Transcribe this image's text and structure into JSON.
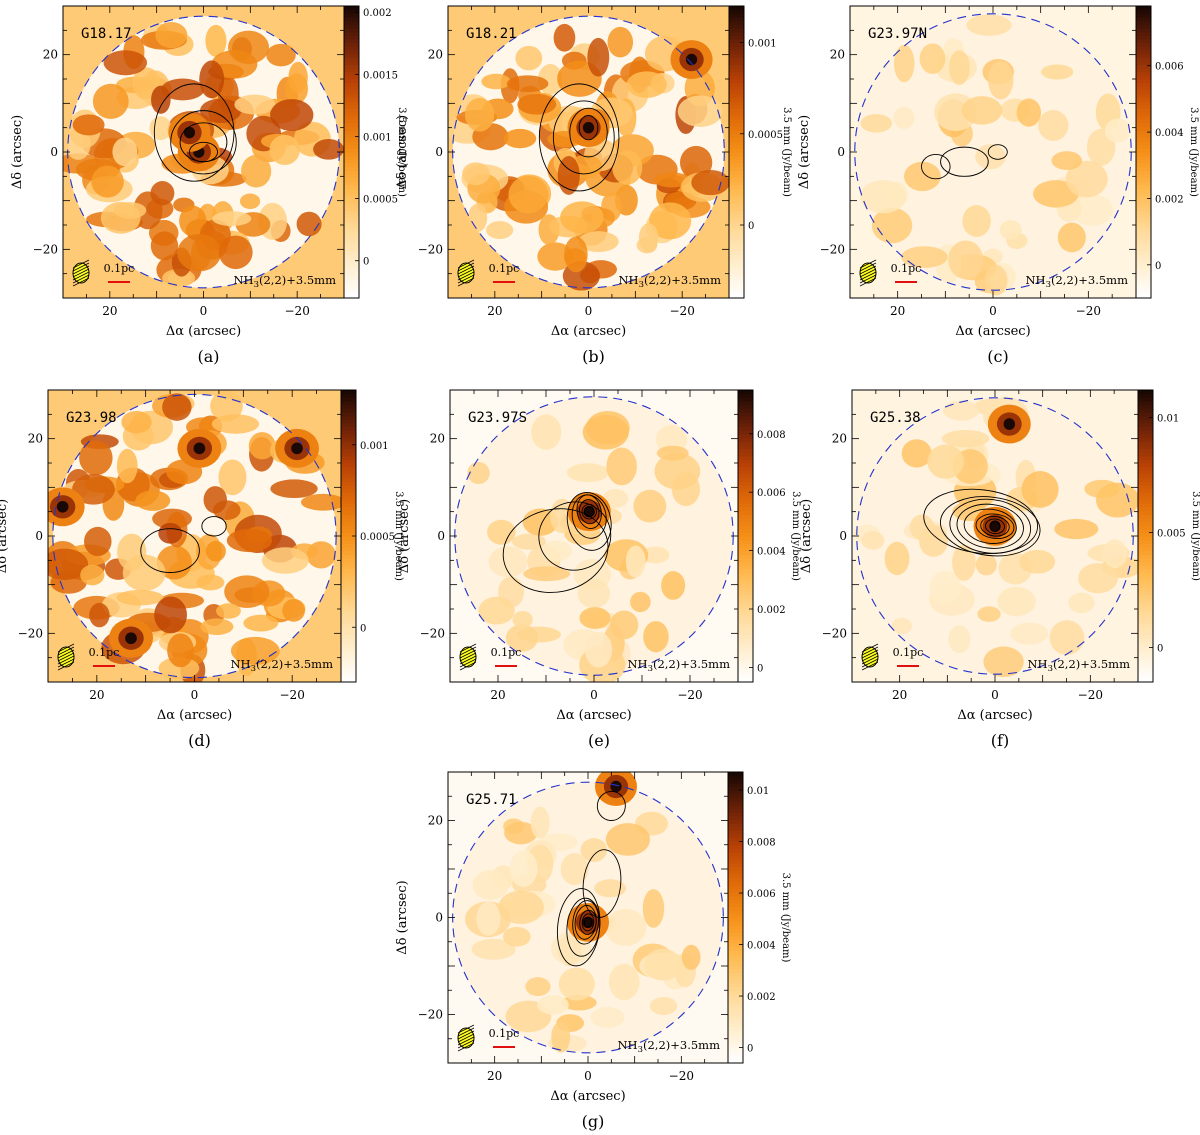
{
  "figure": {
    "background": "#ffffff"
  },
  "common": {
    "xlabel": "Δα (arcsec)",
    "ylabel": "Δδ (arcsec)",
    "colorbar_label": "3.5 mm (Jy/beam)",
    "overlay_label": "NH",
    "overlay_sub": "3",
    "overlay_rest": "(2,2)+3.5mm",
    "scalebar_label": "0.1pc",
    "colors": {
      "primary_beam": "#2233cc",
      "scalebar": "#e01010",
      "beam": "#ffff22",
      "contour": "#000000"
    },
    "colormap": [
      "#ffffff",
      "#ffecc8",
      "#ffd690",
      "#ffb84c",
      "#f59018",
      "#e06a08",
      "#b84006",
      "#6e2208",
      "#1a0804"
    ]
  },
  "chart_data": [
    {
      "type": "heatmap",
      "panel": "(a)",
      "title": "G18.17",
      "xlim": [
        30,
        -30
      ],
      "ylim": [
        -30,
        30
      ],
      "x_ticks": [
        20,
        0,
        -20
      ],
      "y_ticks": [
        -20,
        0,
        20
      ],
      "x_tick_labels": [
        "20",
        "0",
        "−20"
      ],
      "y_tick_labels": [
        "−20",
        "0",
        "20"
      ],
      "colorbar_range": [
        -0.0003,
        0.00205
      ],
      "colorbar_ticks": [
        0,
        0.0005,
        0.001,
        0.0015,
        0.002
      ],
      "colorbar_tick_labels": [
        "0",
        "0.0005",
        "0.001",
        "0.0015",
        "0.002"
      ],
      "background": "noisy",
      "seed": 11,
      "peaks": [
        {
          "x": 1,
          "y": 0
        },
        {
          "x": 3,
          "y": 4
        }
      ]
    },
    {
      "type": "heatmap",
      "panel": "(b)",
      "title": "G18.21",
      "xlim": [
        30,
        -30
      ],
      "ylim": [
        -30,
        30
      ],
      "x_ticks": [
        20,
        0,
        -20
      ],
      "y_ticks": [
        -20,
        0,
        20
      ],
      "x_tick_labels": [
        "20",
        "0",
        "−20"
      ],
      "y_tick_labels": [
        "−20",
        "0",
        "20"
      ],
      "colorbar_range": [
        -0.0004,
        0.0012
      ],
      "colorbar_ticks": [
        0,
        0.0005,
        0.001
      ],
      "colorbar_tick_labels": [
        "0",
        "0.0005",
        "0.001"
      ],
      "background": "noisy",
      "seed": 23,
      "peaks": [
        {
          "x": 0,
          "y": 5
        },
        {
          "x": -22,
          "y": 19
        }
      ]
    },
    {
      "type": "heatmap",
      "panel": "(c)",
      "title": "G23.97N",
      "xlim": [
        30,
        -30
      ],
      "ylim": [
        -30,
        30
      ],
      "x_ticks": [
        20,
        0,
        -20
      ],
      "y_ticks": [
        -20,
        0,
        20
      ],
      "x_tick_labels": [
        "20",
        "0",
        "−20"
      ],
      "y_tick_labels": [
        "−20",
        "0",
        "20"
      ],
      "colorbar_range": [
        -0.001,
        0.0078
      ],
      "colorbar_ticks": [
        0,
        0.002,
        0.004,
        0.006
      ],
      "colorbar_tick_labels": [
        "0",
        "0.002",
        "0.004",
        "0.006"
      ],
      "background": "faint",
      "seed": 37,
      "peaks": []
    },
    {
      "type": "heatmap",
      "panel": "(d)",
      "title": "G23.98",
      "xlim": [
        30,
        -30
      ],
      "ylim": [
        -30,
        30
      ],
      "x_ticks": [
        20,
        0,
        -20
      ],
      "y_ticks": [
        -20,
        0,
        20
      ],
      "x_tick_labels": [
        "20",
        "0",
        "−20"
      ],
      "y_tick_labels": [
        "−20",
        "0",
        "20"
      ],
      "colorbar_range": [
        -0.0003,
        0.0013
      ],
      "colorbar_ticks": [
        0,
        0.0005,
        0.001
      ],
      "colorbar_tick_labels": [
        "0",
        "0.0005",
        "0.001"
      ],
      "background": "noisy",
      "seed": 41,
      "peaks": [
        {
          "x": -1,
          "y": 18
        },
        {
          "x": 13,
          "y": -21
        },
        {
          "x": 27,
          "y": 6
        },
        {
          "x": -21,
          "y": 18
        }
      ]
    },
    {
      "type": "heatmap",
      "panel": "(e)",
      "title": "G23.97S",
      "xlim": [
        30,
        -30
      ],
      "ylim": [
        -30,
        30
      ],
      "x_ticks": [
        20,
        0,
        -20
      ],
      "y_ticks": [
        -20,
        0,
        20
      ],
      "x_tick_labels": [
        "20",
        "0",
        "−20"
      ],
      "y_tick_labels": [
        "−20",
        "0",
        "20"
      ],
      "colorbar_range": [
        -0.0005,
        0.0095
      ],
      "colorbar_ticks": [
        0,
        0.002,
        0.004,
        0.006,
        0.008
      ],
      "colorbar_tick_labels": [
        "0",
        "0.002",
        "0.004",
        "0.006",
        "0.008"
      ],
      "background": "faint",
      "seed": 53,
      "peaks": [
        {
          "x": 1,
          "y": 5
        }
      ]
    },
    {
      "type": "heatmap",
      "panel": "(f)",
      "title": "G25.38",
      "xlim": [
        30,
        -30
      ],
      "ylim": [
        -30,
        30
      ],
      "x_ticks": [
        20,
        0,
        -20
      ],
      "y_ticks": [
        -20,
        0,
        20
      ],
      "x_tick_labels": [
        "20",
        "0",
        "−20"
      ],
      "y_tick_labels": [
        "−20",
        "0",
        "20"
      ],
      "colorbar_range": [
        -0.0015,
        0.0112
      ],
      "colorbar_ticks": [
        0,
        0.005,
        0.01
      ],
      "colorbar_tick_labels": [
        "0",
        "0.005",
        "0.01"
      ],
      "background": "faint",
      "seed": 67,
      "peaks": [
        {
          "x": 0,
          "y": 2
        },
        {
          "x": -3,
          "y": 23
        }
      ]
    },
    {
      "type": "heatmap",
      "panel": "(g)",
      "title": "G25.71",
      "xlim": [
        30,
        -30
      ],
      "ylim": [
        -30,
        30
      ],
      "x_ticks": [
        20,
        0,
        -20
      ],
      "y_ticks": [
        -20,
        0,
        20
      ],
      "x_tick_labels": [
        "20",
        "0",
        "−20"
      ],
      "y_tick_labels": [
        "−20",
        "0",
        "20"
      ],
      "colorbar_range": [
        -0.0006,
        0.0107
      ],
      "colorbar_ticks": [
        0,
        0.002,
        0.004,
        0.006,
        0.008,
        0.01
      ],
      "colorbar_tick_labels": [
        "0",
        "0.002",
        "0.004",
        "0.006",
        "0.008",
        "0.01"
      ],
      "background": "faint",
      "seed": 79,
      "peaks": [
        {
          "x": -6,
          "y": 27
        },
        {
          "x": 0,
          "y": -1
        }
      ]
    }
  ]
}
